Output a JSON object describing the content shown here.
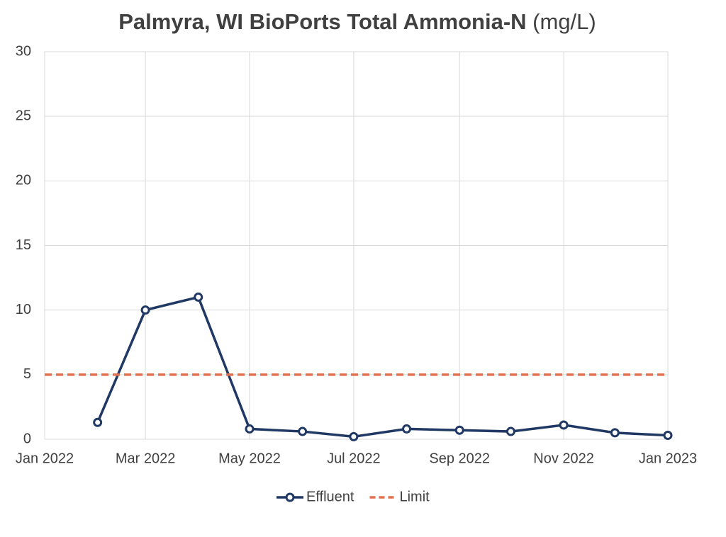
{
  "chart_data": {
    "type": "line",
    "title": "Palmyra, WI BioPorts Total Ammonia-N",
    "title_units": "(mg/L)",
    "x": [
      "2022-01",
      "2022-02",
      "2022-03",
      "2022-04",
      "2022-05",
      "2022-06",
      "2022-07",
      "2022-08",
      "2022-09",
      "2022-10",
      "2022-11",
      "2022-12",
      "2023-01"
    ],
    "series": [
      {
        "name": "Effluent",
        "color": "#203864",
        "style": "solid",
        "markers": true,
        "values": [
          null,
          1.3,
          10,
          11,
          0.8,
          0.6,
          0.2,
          0.8,
          0.7,
          0.6,
          1.1,
          0.5,
          0.3
        ]
      },
      {
        "name": "Limit",
        "color": "#e2704f",
        "style": "dashed",
        "markers": false,
        "values": [
          5,
          5,
          5,
          5,
          5,
          5,
          5,
          5,
          5,
          5,
          5,
          5,
          5
        ]
      }
    ],
    "xlim": [
      "2022-01",
      "2023-01"
    ],
    "xticks": [
      {
        "value": "2022-01",
        "label": "Jan 2022"
      },
      {
        "value": "2022-03",
        "label": "Mar 2022"
      },
      {
        "value": "2022-05",
        "label": "May 2022"
      },
      {
        "value": "2022-07",
        "label": "Jul 2022"
      },
      {
        "value": "2022-09",
        "label": "Sep 2022"
      },
      {
        "value": "2022-11",
        "label": "Nov 2022"
      },
      {
        "value": "2023-01",
        "label": "Jan 2023"
      }
    ],
    "ylim": [
      0,
      30
    ],
    "yticks": [
      0,
      5,
      10,
      15,
      20,
      25,
      30
    ],
    "grid": true,
    "legend": "bottom"
  }
}
